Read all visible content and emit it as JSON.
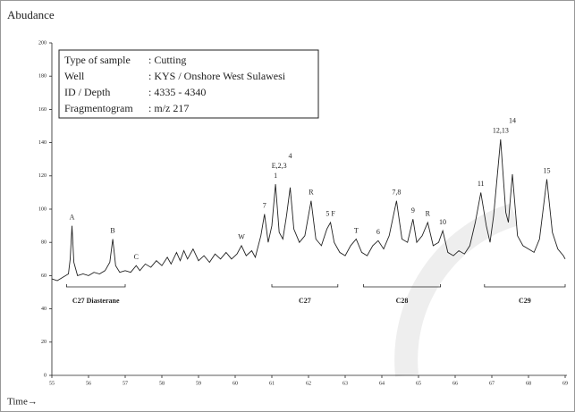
{
  "chart_data": {
    "type": "line",
    "title": "Abudance",
    "x_label": "Time→",
    "info": [
      {
        "label": "Type of sample",
        "value": ": Cutting"
      },
      {
        "label": "Well",
        "value": ": KYS / Onshore West Sulawesi"
      },
      {
        "label": "ID / Depth",
        "value": ": 4335 - 4340"
      },
      {
        "label": "Fragmentogram",
        "value": ": m/z 217"
      }
    ],
    "color": "#222222",
    "x": [
      55.0,
      55.15,
      55.3,
      55.45,
      55.5,
      55.55,
      55.6,
      55.7,
      55.85,
      56.0,
      56.15,
      56.3,
      56.45,
      56.58,
      56.66,
      56.74,
      56.85,
      57.0,
      57.15,
      57.3,
      57.4,
      57.55,
      57.7,
      57.85,
      58.0,
      58.15,
      58.25,
      58.4,
      58.5,
      58.6,
      58.7,
      58.85,
      59.0,
      59.15,
      59.3,
      59.45,
      59.6,
      59.75,
      59.9,
      60.05,
      60.17,
      60.3,
      60.45,
      60.55,
      60.7,
      60.8,
      60.9,
      61.0,
      61.1,
      61.2,
      61.3,
      61.4,
      61.5,
      61.6,
      61.75,
      61.9,
      62.07,
      62.2,
      62.35,
      62.5,
      62.6,
      62.7,
      62.85,
      63.0,
      63.15,
      63.3,
      63.45,
      63.6,
      63.75,
      63.9,
      64.05,
      64.2,
      64.4,
      64.55,
      64.7,
      64.85,
      64.95,
      65.1,
      65.25,
      65.4,
      65.55,
      65.66,
      65.8,
      65.95,
      66.1,
      66.25,
      66.4,
      66.55,
      66.7,
      66.85,
      66.95,
      67.05,
      67.24,
      67.38,
      67.45,
      67.56,
      67.7,
      67.85,
      68.0,
      68.15,
      68.3,
      68.5,
      68.65,
      68.8,
      68.95,
      69.0
    ],
    "values": [
      58,
      57,
      59,
      61,
      70,
      90,
      68,
      60,
      61,
      60,
      62,
      61,
      63,
      68,
      82,
      66,
      62,
      63,
      62,
      66,
      63,
      67,
      65,
      69,
      66,
      71,
      67,
      74,
      69,
      75,
      70,
      76,
      69,
      72,
      68,
      73,
      70,
      74,
      70,
      73,
      78,
      72,
      75,
      71,
      84,
      97,
      80,
      90,
      115,
      86,
      82,
      96,
      113,
      88,
      80,
      84,
      105,
      82,
      78,
      88,
      92,
      80,
      74,
      72,
      78,
      82,
      74,
      72,
      78,
      81,
      76,
      84,
      105,
      82,
      80,
      94,
      80,
      84,
      92,
      78,
      80,
      87,
      74,
      72,
      75,
      73,
      78,
      92,
      110,
      90,
      80,
      96,
      142,
      98,
      92,
      121,
      84,
      78,
      76,
      74,
      82,
      118,
      86,
      76,
      72,
      70
    ],
    "annotations": [
      {
        "text": "A",
        "x": 55.55
      },
      {
        "text": "B",
        "x": 56.66
      },
      {
        "text": "C",
        "x": 57.3
      },
      {
        "text": "W",
        "x": 60.17
      },
      {
        "text": "7",
        "x": 60.8
      },
      {
        "text": "1",
        "x": 61.1
      },
      {
        "text": "E,2,3",
        "x": 61.2
      },
      {
        "text": "4",
        "x": 61.5
      },
      {
        "text": "R",
        "x": 62.07
      },
      {
        "text": "5 F",
        "x": 62.6
      },
      {
        "text": "T",
        "x": 63.3
      },
      {
        "text": "6",
        "x": 63.9
      },
      {
        "text": "7,8",
        "x": 64.4
      },
      {
        "text": "9",
        "x": 64.85
      },
      {
        "text": "R",
        "x": 65.25
      },
      {
        "text": "10",
        "x": 65.66
      },
      {
        "text": "11",
        "x": 66.7
      },
      {
        "text": "12,13",
        "x": 67.24
      },
      {
        "text": "14",
        "x": 67.56
      },
      {
        "text": "15",
        "x": 68.5
      }
    ],
    "brackets": [
      {
        "text": "C27 Diasterane",
        "x": [
          55.4,
          57.0
        ]
      },
      {
        "text": "C27",
        "x": [
          61.0,
          62.8
        ]
      },
      {
        "text": "C28",
        "x": [
          63.5,
          65.6
        ]
      },
      {
        "text": "C29",
        "x": [
          66.8,
          69.0
        ]
      }
    ],
    "xlim": [
      55,
      69
    ],
    "xticks": [
      55,
      56,
      57,
      58,
      59,
      60,
      61,
      62,
      63,
      64,
      65,
      66,
      67,
      68,
      69
    ],
    "ylim": [
      0,
      200
    ],
    "yticks": [
      0,
      20,
      40,
      60,
      80,
      100,
      120,
      140,
      160,
      180,
      200
    ]
  }
}
